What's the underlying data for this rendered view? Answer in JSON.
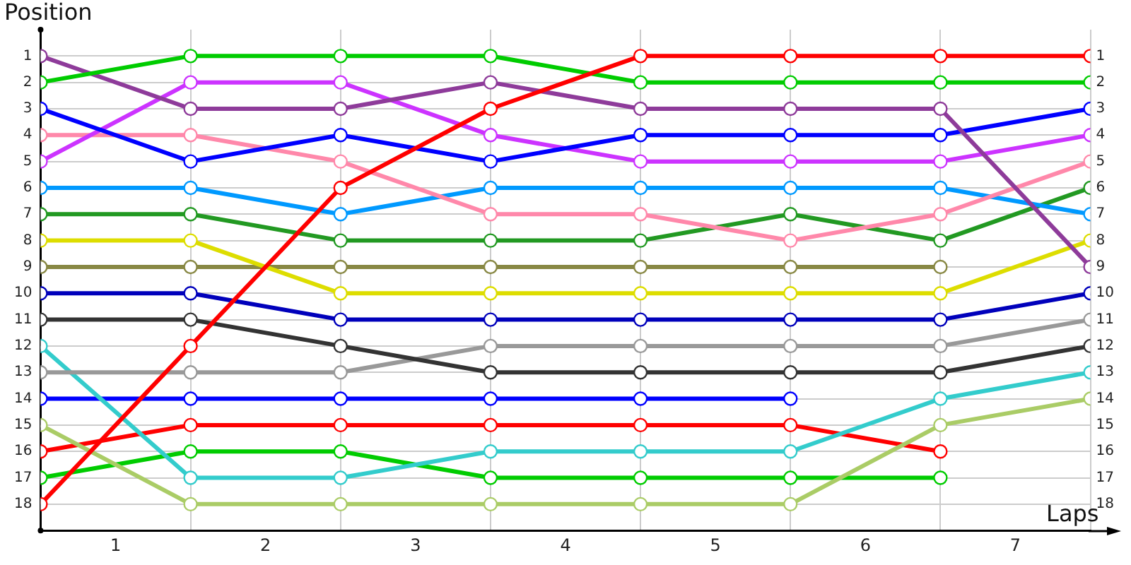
{
  "chart_data": {
    "type": "line",
    "xlabel": "Laps",
    "ylabel": "Position",
    "xlim": [
      0,
      7
    ],
    "xticks": [
      {
        "value": 0,
        "label": null
      },
      {
        "value": 0.5,
        "label": "1"
      },
      {
        "value": 1,
        "label": null
      },
      {
        "value": 1.5,
        "label": "2"
      },
      {
        "value": 2,
        "label": null
      },
      {
        "value": 2.5,
        "label": "3"
      },
      {
        "value": 3,
        "label": null
      },
      {
        "value": 3.5,
        "label": "4"
      },
      {
        "value": 4,
        "label": null
      },
      {
        "value": 4.5,
        "label": "5"
      },
      {
        "value": 5,
        "label": null
      },
      {
        "value": 5.5,
        "label": "6"
      },
      {
        "value": 6,
        "label": null
      },
      {
        "value": 6.5,
        "label": "7"
      },
      {
        "value": 7,
        "label": null
      }
    ],
    "ylim": [
      19,
      0
    ],
    "yticks": [
      1,
      2,
      3,
      4,
      5,
      6,
      7,
      8,
      9,
      10,
      11,
      12,
      13,
      14,
      15,
      16,
      17,
      18
    ],
    "y2lim": [
      19,
      0
    ],
    "y2ticks": [
      1,
      2,
      3,
      4,
      5,
      6,
      7,
      8,
      9,
      10,
      11,
      12,
      13,
      14,
      15,
      16,
      17,
      18
    ],
    "x": [
      0,
      1,
      2,
      3,
      4,
      5,
      6,
      7
    ],
    "grid": true,
    "legend": false,
    "marker": "circle",
    "line_style": "solid",
    "series": [
      {
        "color": "#ff0000",
        "values": [
          18,
          12,
          6,
          3,
          1,
          1,
          1,
          1
        ]
      },
      {
        "color": "#00cc00",
        "values": [
          2,
          1,
          1,
          1,
          2,
          2,
          2,
          2
        ]
      },
      {
        "color": "#8e3b9a",
        "values": [
          1,
          3,
          3,
          2,
          3,
          3,
          3,
          9
        ]
      },
      {
        "color": "#0000ff",
        "values": [
          3,
          5,
          4,
          5,
          4,
          4,
          4,
          3
        ]
      },
      {
        "color": "#cc33ff",
        "values": [
          5,
          2,
          2,
          4,
          5,
          5,
          5,
          4
        ]
      },
      {
        "color": "#ff88aa",
        "values": [
          4,
          4,
          5,
          7,
          7,
          8,
          7,
          5
        ]
      },
      {
        "color": "#0099ff",
        "values": [
          6,
          6,
          7,
          6,
          6,
          6,
          6,
          7
        ]
      },
      {
        "color": "#229922",
        "values": [
          7,
          7,
          8,
          8,
          8,
          7,
          8,
          6
        ]
      },
      {
        "color": "#dddd00",
        "values": [
          8,
          8,
          10,
          10,
          10,
          10,
          10,
          8
        ]
      },
      {
        "color": "#888844",
        "values": [
          9,
          9,
          9,
          9,
          9,
          9,
          9,
          null
        ]
      },
      {
        "color": "#0000bb",
        "values": [
          10,
          10,
          11,
          11,
          11,
          11,
          11,
          10
        ]
      },
      {
        "color": "#333333",
        "values": [
          11,
          11,
          12,
          13,
          13,
          13,
          13,
          12
        ]
      },
      {
        "color": "#999999",
        "values": [
          13,
          13,
          13,
          12,
          12,
          12,
          12,
          11
        ]
      },
      {
        "color": "#33cccc",
        "values": [
          12,
          17,
          17,
          16,
          16,
          16,
          14,
          13
        ]
      },
      {
        "color": "#aacc66",
        "values": [
          15,
          18,
          18,
          18,
          18,
          18,
          15,
          14
        ]
      },
      {
        "color": "#0000ff",
        "values": [
          14,
          14,
          14,
          14,
          14,
          14,
          null,
          null
        ]
      },
      {
        "color": "#ff0000",
        "values": [
          16,
          15,
          15,
          15,
          15,
          15,
          16,
          null
        ]
      },
      {
        "color": "#00cc00",
        "values": [
          17,
          16,
          16,
          17,
          17,
          17,
          17,
          null
        ]
      }
    ]
  }
}
